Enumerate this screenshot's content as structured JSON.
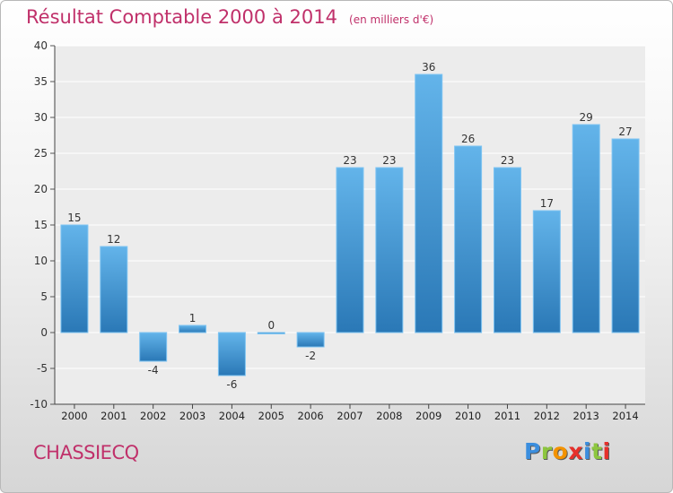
{
  "chart_data": {
    "type": "bar",
    "title": "Résultat Comptable 2000 à 2014",
    "subtitle": "(en milliers d'€)",
    "categories": [
      "2000",
      "2001",
      "2002",
      "2003",
      "2004",
      "2005",
      "2006",
      "2007",
      "2008",
      "2009",
      "2010",
      "2011",
      "2012",
      "2013",
      "2014"
    ],
    "values": [
      15,
      12,
      -4,
      1,
      -6,
      0,
      -2,
      23,
      23,
      36,
      26,
      23,
      17,
      29,
      27
    ],
    "ylim": [
      -10,
      40
    ],
    "yticks": [
      -10,
      -5,
      0,
      5,
      10,
      15,
      20,
      25,
      30,
      35,
      40
    ],
    "grid": true,
    "xlabel": "",
    "ylabel": ""
  },
  "footer": {
    "commune": "CHASSIECQ",
    "logo_letters": [
      "P",
      "r",
      "o",
      "x",
      "i",
      "t",
      "i"
    ]
  },
  "colors": {
    "title": "#c0306a",
    "bar_light": "#63b4ea",
    "bar_dark": "#2a78b6",
    "logo": [
      "#3b8ede",
      "#8dc63f",
      "#f39200",
      "#e6302b",
      "#3b8ede",
      "#8dc63f",
      "#e6302b"
    ]
  }
}
